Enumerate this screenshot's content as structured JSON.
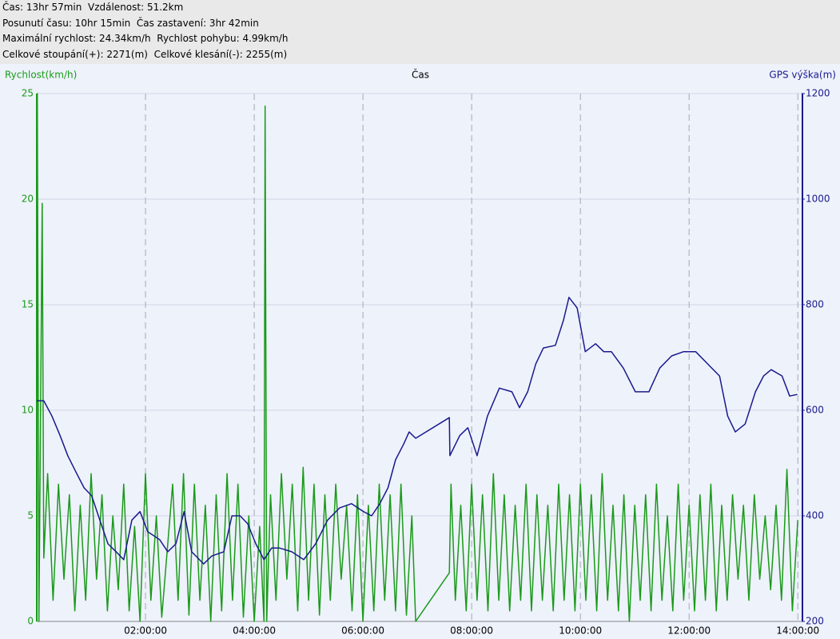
{
  "chart_data": {
    "type": "line",
    "summary": [
      "Čas: 13hr 57min  Vzdálenost: 51.2km",
      "Posunutí času: 10hr 15min  Čas zastavení: 3hr 42min",
      "Maximální rychlost: 24.34km/h  Rychlost pohybu: 4.99km/h",
      "Celkové stoupání(+): 2271(m)  Celkové klesání(-): 2255(m)"
    ],
    "ylabel": "Rychlost(km/h)",
    "xlabel": "Čas",
    "y2label": "GPS výška(m)",
    "xlim": [
      0,
      14.07
    ],
    "ylim": [
      0,
      25
    ],
    "y2lim": [
      200,
      1200
    ],
    "yticks": [
      0,
      5,
      10,
      15,
      20,
      25
    ],
    "y2ticks": [
      200,
      400,
      600,
      800,
      1000,
      1200
    ],
    "xticks": [
      {
        "value": 2,
        "label": "02:00:00"
      },
      {
        "value": 4,
        "label": "04:00:00"
      },
      {
        "value": 6,
        "label": "06:00:00"
      },
      {
        "value": 8,
        "label": "08:00:00"
      },
      {
        "value": 10,
        "label": "10:00:00"
      },
      {
        "value": 12,
        "label": "12:00:00"
      },
      {
        "value": 14,
        "label": "14:00:00"
      }
    ],
    "grid": true,
    "series": [
      {
        "color": "#1a9a1a",
        "axis": "y",
        "x": [
          0,
          0.01,
          0.04,
          0.1,
          0.13,
          0.2,
          0.3,
          0.4,
          0.5,
          0.6,
          0.7,
          0.8,
          0.9,
          1.0,
          1.1,
          1.2,
          1.3,
          1.4,
          1.5,
          1.6,
          1.7,
          1.8,
          1.9,
          2.0,
          2.1,
          2.2,
          2.3,
          2.5,
          2.6,
          2.7,
          2.8,
          2.9,
          3.0,
          3.1,
          3.2,
          3.3,
          3.4,
          3.5,
          3.6,
          3.7,
          3.8,
          3.9,
          4.0,
          4.1,
          4.18,
          4.2,
          4.23,
          4.3,
          4.4,
          4.5,
          4.6,
          4.7,
          4.8,
          4.9,
          5.0,
          5.1,
          5.2,
          5.3,
          5.4,
          5.5,
          5.6,
          5.7,
          5.8,
          5.9,
          6.0,
          6.1,
          6.2,
          6.3,
          6.4,
          6.5,
          6.6,
          6.7,
          6.8,
          6.9,
          6.97,
          7.59,
          7.62,
          7.7,
          7.8,
          7.9,
          8.0,
          8.1,
          8.2,
          8.3,
          8.4,
          8.5,
          8.6,
          8.7,
          8.8,
          8.9,
          9.0,
          9.1,
          9.2,
          9.3,
          9.4,
          9.5,
          9.6,
          9.7,
          9.8,
          9.9,
          10.0,
          10.1,
          10.2,
          10.3,
          10.4,
          10.5,
          10.6,
          10.7,
          10.8,
          10.9,
          11.0,
          11.1,
          11.2,
          11.3,
          11.4,
          11.5,
          11.6,
          11.7,
          11.8,
          11.9,
          12.0,
          12.1,
          12.2,
          12.3,
          12.4,
          12.5,
          12.6,
          12.7,
          12.8,
          12.9,
          13.0,
          13.1,
          13.2,
          13.3,
          13.4,
          13.5,
          13.6,
          13.7,
          13.8,
          13.9,
          14.0
        ],
        "values": [
          0,
          25,
          0,
          19.8,
          3,
          7,
          1,
          6.5,
          2,
          6,
          0.5,
          5.5,
          1,
          7,
          2,
          6,
          0.5,
          5,
          1.5,
          6.5,
          0.5,
          4.5,
          0,
          7,
          1,
          5,
          0.2,
          6.5,
          1,
          7,
          0.3,
          6.5,
          1,
          5.5,
          0,
          6,
          0.5,
          7,
          1,
          6.5,
          0.2,
          5,
          0,
          4.5,
          0,
          24.4,
          0,
          6,
          1,
          7,
          2,
          6.5,
          0.5,
          7.3,
          1,
          6.5,
          0.3,
          6,
          1,
          6.5,
          2,
          5.5,
          0.5,
          6,
          0,
          5.5,
          0.5,
          6.5,
          1,
          6,
          0.5,
          6.5,
          0.3,
          5,
          0,
          2.3,
          6.5,
          1,
          5.5,
          0.5,
          6.5,
          1,
          6,
          0.5,
          7,
          1,
          6,
          0.5,
          5.5,
          1,
          6.5,
          0.5,
          6,
          1,
          5.5,
          0.5,
          6.5,
          1,
          6,
          0.5,
          6.5,
          1,
          6,
          0.5,
          7,
          1,
          5.5,
          0.5,
          6,
          0,
          5.5,
          1,
          6,
          0.5,
          6.5,
          1,
          5,
          0.5,
          6.5,
          1,
          5.5,
          0.5,
          6,
          1,
          6.5,
          0.5,
          5.5,
          1,
          6,
          2,
          5.5,
          1,
          6,
          2,
          5,
          1.5,
          5.5,
          1,
          7.2,
          0.5,
          4.8
        ]
      },
      {
        "color": "#1a1a8c",
        "axis": "y2",
        "x": [
          0,
          0.13,
          0.28,
          0.43,
          0.57,
          0.72,
          0.87,
          1.01,
          1.16,
          1.31,
          1.46,
          1.6,
          1.75,
          1.9,
          2.04,
          2.26,
          2.41,
          2.56,
          2.71,
          2.85,
          3.07,
          3.22,
          3.44,
          3.59,
          3.74,
          3.88,
          4.03,
          4.18,
          4.32,
          4.47,
          4.69,
          4.91,
          5.13,
          5.35,
          5.57,
          5.79,
          6.01,
          6.16,
          6.31,
          6.46,
          6.6,
          6.75,
          6.85,
          6.97,
          7.59,
          7.6,
          7.78,
          7.93,
          8.1,
          8.29,
          8.51,
          8.74,
          8.88,
          9.03,
          9.18,
          9.32,
          9.54,
          9.69,
          9.79,
          9.94,
          10.09,
          10.28,
          10.43,
          10.57,
          10.79,
          11.01,
          11.26,
          11.46,
          11.68,
          11.9,
          12.12,
          12.34,
          12.56,
          12.71,
          12.85,
          13.03,
          13.22,
          13.37,
          13.51,
          13.71,
          13.85,
          13.99
        ],
        "values": [
          618,
          618,
          589,
          552,
          514,
          483,
          453,
          438,
          392,
          347,
          332,
          317,
          392,
          408,
          370,
          355,
          332,
          347,
          408,
          332,
          309,
          324,
          332,
          400,
          400,
          385,
          347,
          317,
          339,
          339,
          332,
          317,
          347,
          392,
          415,
          423,
          408,
          400,
          423,
          453,
          506,
          536,
          559,
          547,
          586,
          514,
          552,
          567,
          514,
          589,
          642,
          635,
          605,
          635,
          688,
          718,
          723,
          771,
          814,
          794,
          711,
          726,
          711,
          711,
          680,
          635,
          635,
          680,
          703,
          711,
          711,
          688,
          665,
          589,
          559,
          574,
          635,
          665,
          677,
          665,
          627,
          630
        ]
      }
    ]
  }
}
